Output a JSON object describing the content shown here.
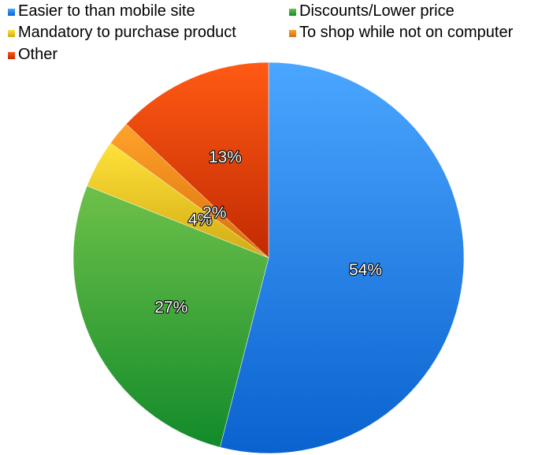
{
  "chart_data": {
    "type": "pie",
    "title": "",
    "legend_position": "top",
    "slices": [
      {
        "label": "Easier to than mobile site",
        "value": 54,
        "display": "54%",
        "color_light": "#4aa6ff",
        "color_dark": "#0a62cf"
      },
      {
        "label": "Discounts/Lower price",
        "value": 27,
        "display": "27%",
        "color_light": "#6ec14a",
        "color_dark": "#128a2a"
      },
      {
        "label": "Mandatory to purchase product",
        "value": 4,
        "display": "4%",
        "color_light": "#ffe23a",
        "color_dark": "#d2ab14"
      },
      {
        "label": "To shop while not on computer",
        "value": 2,
        "display": "2%",
        "color_light": "#ffa32a",
        "color_dark": "#d96f0c"
      },
      {
        "label": "Other",
        "value": 13,
        "display": "13%",
        "color_light": "#ff5a14",
        "color_dark": "#c22a02"
      }
    ]
  }
}
